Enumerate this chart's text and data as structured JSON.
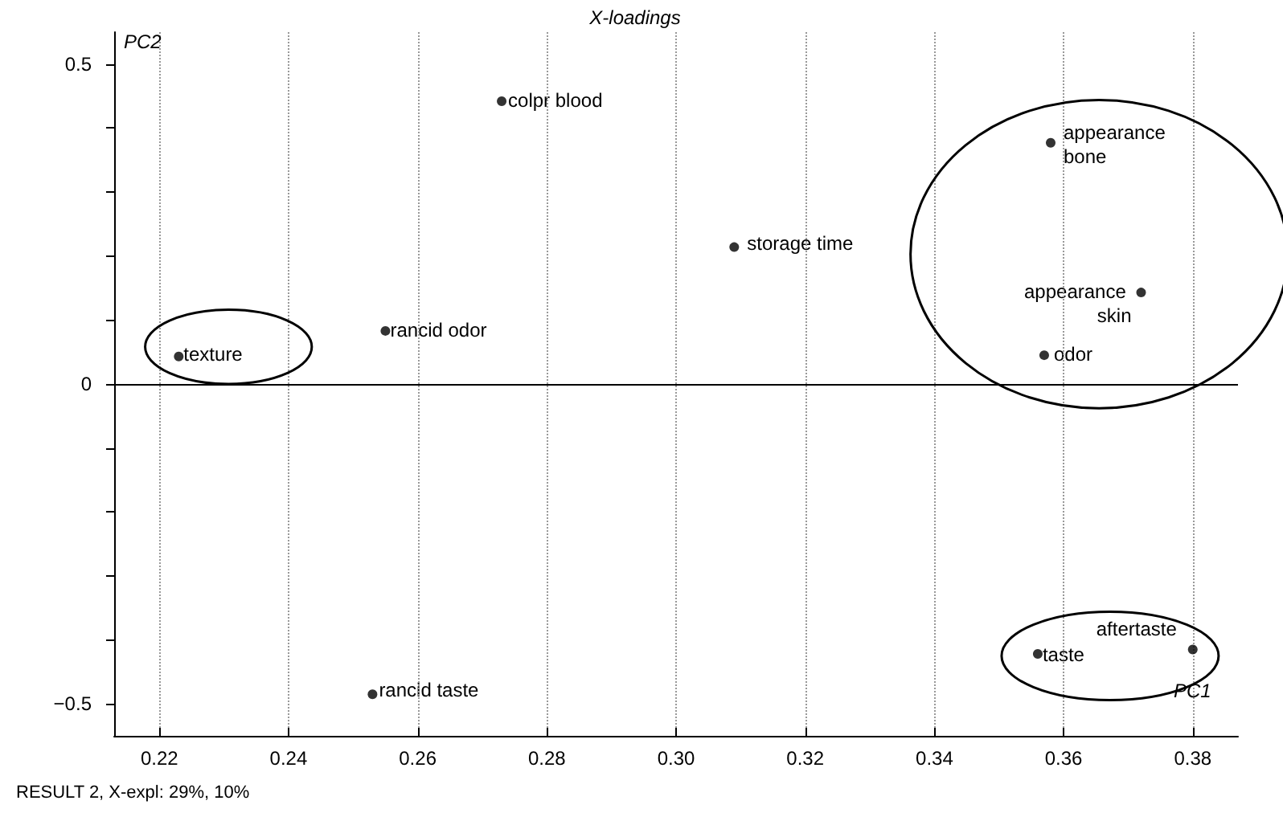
{
  "chart_data": {
    "type": "scatter",
    "title": "X-loadings",
    "xlabel": "PC1",
    "ylabel": "PC2",
    "x": [
      0.223,
      0.255,
      0.273,
      0.309,
      0.358,
      0.372,
      0.357,
      0.253,
      0.356,
      0.38
    ],
    "series": [
      {
        "color": "#000000",
        "values": [
          0.043,
          0.083,
          0.442,
          0.214,
          0.377,
          0.143,
          0.045,
          -0.485,
          -0.422,
          -0.415
        ]
      }
    ],
    "annotations": [
      {
        "text": "texture",
        "x": 0.223,
        "y": 0.043
      },
      {
        "text": "rancid odor",
        "x": 0.255,
        "y": 0.083
      },
      {
        "text": "colpr blood",
        "x": 0.273,
        "y": 0.442
      },
      {
        "text": "storage time",
        "x": 0.309,
        "y": 0.214
      },
      {
        "text": "appearance bone",
        "x": 0.358,
        "y": 0.377
      },
      {
        "text": "appearance skin",
        "x": 0.372,
        "y": 0.143
      },
      {
        "text": "odor",
        "x": 0.357,
        "y": 0.045
      },
      {
        "text": "rancid taste",
        "x": 0.253,
        "y": -0.485
      },
      {
        "text": "taste",
        "x": 0.356,
        "y": -0.422
      },
      {
        "text": "aftertaste",
        "x": 0.38,
        "y": -0.415
      },
      "RESULT 2, X-expl: 29%, 10%"
    ],
    "xlim": [
      0.213,
      0.387
    ],
    "xticks": [
      {
        "value": 0.22,
        "label": "0.22"
      },
      {
        "value": 0.24,
        "label": "0.24"
      },
      {
        "value": 0.26,
        "label": "0.26"
      },
      {
        "value": 0.28,
        "label": "0.28"
      },
      {
        "value": 0.3,
        "label": "0.30"
      },
      {
        "value": 0.32,
        "label": "0.32"
      },
      {
        "value": 0.34,
        "label": "0.34"
      },
      {
        "value": 0.36,
        "label": "0.36"
      },
      {
        "value": 0.38,
        "label": "0.38"
      }
    ],
    "ylim": [
      -0.55,
      0.55
    ],
    "yticks": [
      -0.5,
      {
        "value": -0.4,
        "label": null
      },
      {
        "value": -0.3,
        "label": null
      },
      {
        "value": -0.2,
        "label": null
      },
      {
        "value": -0.1,
        "label": null
      },
      0,
      {
        "value": 0.1,
        "label": null
      },
      {
        "value": 0.2,
        "label": null
      },
      {
        "value": 0.3,
        "label": null
      },
      {
        "value": 0.4,
        "label": null
      },
      0.5
    ],
    "ref_lines": [
      {
        "axis": "y",
        "value": 0,
        "color": "#000000"
      }
    ],
    "grid": "x",
    "marker": "circle"
  }
}
